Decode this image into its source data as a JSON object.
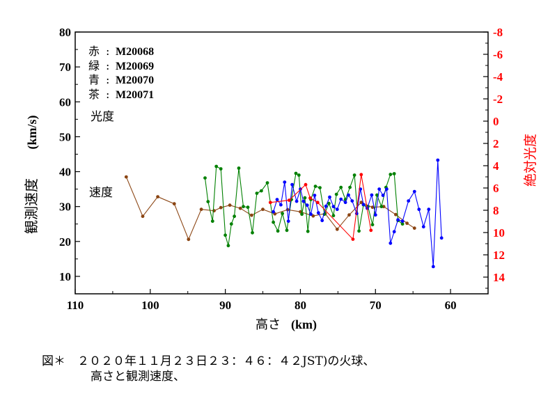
{
  "chart_data": {
    "type": "line",
    "xlabel_main": "高さ",
    "xlabel_unit": "(km)",
    "ylabel_main": "観測速度",
    "ylabel_unit": "(km/s)",
    "y2label": "絶対光度",
    "xlim": [
      110,
      55
    ],
    "ylim": [
      5,
      80
    ],
    "y2lim": [
      15.5,
      -8
    ],
    "xticks": [
      110,
      100,
      90,
      80,
      70,
      60
    ],
    "yticks": [
      10,
      20,
      30,
      40,
      50,
      60,
      70,
      80
    ],
    "y2ticks": [
      -8,
      -6,
      -4,
      -2,
      0,
      2,
      4,
      6,
      8,
      10,
      12,
      14
    ],
    "legend": [
      {
        "label": "赤",
        "sep": ":",
        "id": "M20068",
        "color": "#ff0000"
      },
      {
        "label": "緑",
        "sep": ":",
        "id": "M20069",
        "color": "#008000"
      },
      {
        "label": "青",
        "sep": ":",
        "id": "M20070",
        "color": "#0000ff"
      },
      {
        "label": "茶",
        "sep": ":",
        "id": "M20071",
        "color": "#8b4513"
      }
    ],
    "annotations": {
      "brightness": "光度",
      "speed": "速度"
    },
    "series": [
      {
        "name": "M20071",
        "color": "#8b4513",
        "axis": "left",
        "x": [
          103.2,
          101.0,
          99.0,
          96.8,
          94.9,
          93.2,
          91.5,
          90.6,
          89.4,
          88.0,
          86.5,
          85.0,
          83.4,
          81.7,
          80.0,
          78.3,
          76.7,
          75.1,
          73.5,
          71.9,
          70.4,
          68.9,
          67.3,
          65.8,
          64.8
        ],
        "y": [
          38.5,
          27.2,
          32.8,
          30.8,
          20.6,
          29.2,
          28.8,
          29.7,
          30.4,
          29.5,
          27.5,
          29.2,
          27.9,
          29.1,
          28.5,
          27.3,
          28.0,
          23.5,
          27.6,
          31.2,
          29.8,
          30.0,
          27.7,
          25.2,
          23.8
        ]
      },
      {
        "name": "M20069",
        "color": "#008000",
        "axis": "left",
        "x": [
          92.7,
          92.3,
          91.7,
          91.2,
          90.6,
          90.0,
          89.6,
          89.2,
          88.8,
          88.2,
          87.6,
          87.0,
          86.4,
          85.8,
          85.2,
          84.4,
          83.6,
          83.0,
          82.4,
          81.8,
          81.2,
          80.6,
          80.2,
          79.8,
          79.4,
          79.0,
          78.6,
          78.0,
          77.4,
          76.8,
          76.2,
          75.6,
          75.2,
          74.6,
          74.0,
          73.4,
          72.8,
          72.2,
          71.6,
          71.0,
          70.4,
          69.8,
          69.2,
          68.6,
          68.0,
          67.5,
          67.0,
          66.4
        ],
        "y": [
          38.2,
          31.4,
          25.8,
          41.5,
          40.8,
          21.8,
          18.8,
          25.0,
          27.2,
          41.0,
          30.0,
          29.8,
          22.5,
          33.8,
          34.5,
          36.8,
          25.5,
          23.0,
          28.0,
          23.2,
          32.0,
          39.5,
          39.0,
          27.8,
          32.5,
          22.9,
          32.0,
          35.8,
          35.4,
          27.8,
          30.9,
          27.4,
          33.5,
          35.5,
          32.0,
          35.5,
          39.0,
          23.0,
          30.5,
          30.0,
          24.8,
          33.3,
          30.0,
          35.5,
          39.2,
          39.4,
          26.0,
          25.0
        ]
      },
      {
        "name": "M20070",
        "color": "#0000ff",
        "axis": "left",
        "x": [
          83.6,
          83.1,
          82.6,
          82.1,
          81.6,
          81.1,
          80.5,
          80.0,
          79.6,
          79.1,
          78.6,
          78.1,
          77.6,
          77.1,
          76.6,
          76.1,
          75.6,
          75.1,
          74.6,
          74.0,
          73.6,
          73.1,
          72.5,
          72.0,
          71.6,
          71.1,
          70.5,
          70.0,
          69.5,
          69.0,
          68.5,
          68.0,
          67.5,
          67.0,
          66.4,
          65.6,
          64.8,
          64.2,
          63.6,
          62.9,
          62.3,
          61.7,
          61.2
        ],
        "y": [
          28.5,
          32.0,
          30.5,
          37.0,
          25.8,
          36.3,
          31.5,
          35.0,
          31.5,
          30.4,
          27.8,
          33.2,
          28.2,
          26.0,
          30.1,
          32.7,
          30.0,
          29.2,
          32.1,
          31.2,
          33.3,
          31.6,
          28.0,
          35.0,
          30.6,
          29.5,
          33.3,
          27.6,
          35.0,
          33.2,
          35.0,
          19.5,
          22.8,
          26.2,
          25.8,
          31.6,
          34.3,
          29.2,
          24.2,
          29.2,
          12.8,
          43.3,
          21.0
        ]
      },
      {
        "name": "M20068",
        "color": "#ff0000",
        "axis": "right",
        "x": [
          84.0,
          81.5,
          79.3,
          78.7,
          77.7,
          73.0,
          71.9,
          70.6
        ],
        "y": [
          7.3,
          7.1,
          5.7,
          6.9,
          7.3,
          10.6,
          4.8,
          9.8
        ]
      }
    ]
  },
  "caption": {
    "line1": "図＊　２０２０年１１月２３日２３：４６：４２JST)の火球、",
    "line2": "高さと観測速度、"
  }
}
